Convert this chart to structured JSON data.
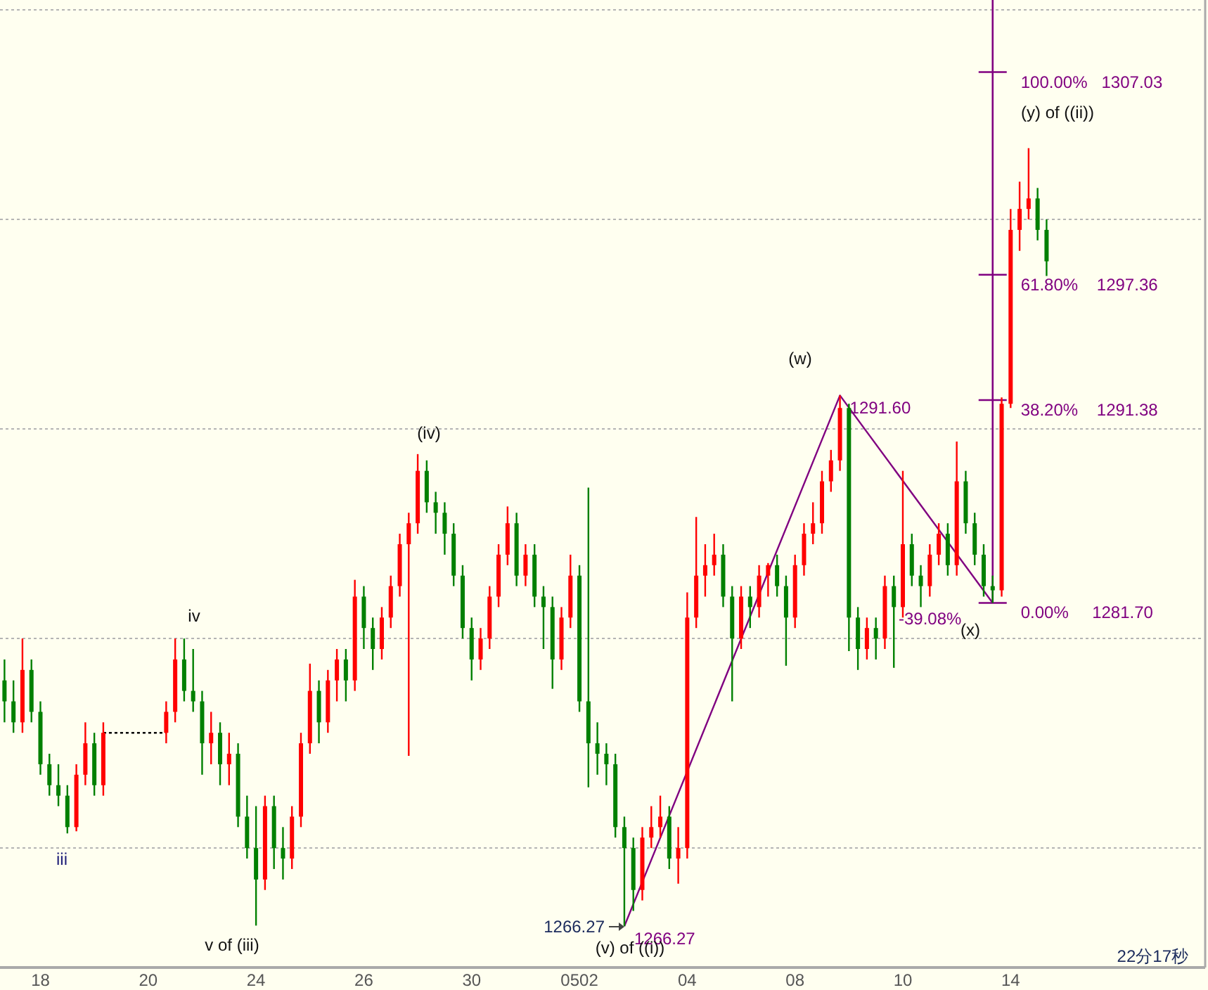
{
  "chart_data": {
    "type": "candlestick",
    "categories": [
      null,
      null,
      null,
      null,
      "18",
      null,
      null,
      null,
      null,
      null,
      null,
      null,
      null,
      null,
      null,
      null,
      "20",
      null,
      null,
      null,
      null,
      null,
      null,
      null,
      null,
      null,
      null,
      null,
      "24",
      null,
      null,
      null,
      null,
      null,
      null,
      null,
      null,
      null,
      null,
      null,
      "26",
      null,
      null,
      null,
      null,
      null,
      null,
      null,
      null,
      null,
      null,
      null,
      "30",
      null,
      null,
      null,
      null,
      null,
      null,
      null,
      null,
      null,
      null,
      null,
      "0502",
      null,
      null,
      null,
      null,
      null,
      null,
      null,
      null,
      null,
      null,
      null,
      "04",
      null,
      null,
      null,
      null,
      null,
      null,
      null,
      null,
      null,
      null,
      null,
      "08",
      null,
      null,
      null,
      null,
      null,
      null,
      null,
      null,
      null,
      null,
      null,
      "10",
      null,
      null,
      null,
      null,
      null,
      null,
      null,
      null,
      null,
      null,
      null,
      "14",
      null,
      null,
      null,
      null,
      null,
      null,
      null,
      null,
      null,
      null,
      null,
      null,
      null,
      null,
      null,
      null,
      null,
      null,
      null,
      null,
      null
    ],
    "ohlc": [
      [
        1278,
        1279,
        1276,
        1277
      ],
      [
        1277,
        1278,
        1275.5,
        1276
      ],
      [
        1276,
        1280,
        1275.5,
        1278.5
      ],
      [
        1278.5,
        1279,
        1276,
        1276.5
      ],
      [
        1276.5,
        1277,
        1273.5,
        1274
      ],
      [
        1274,
        1274.5,
        1272.5,
        1273
      ],
      [
        1273,
        1274,
        1272,
        1272.5
      ],
      [
        1272.5,
        1273,
        1270.7,
        1271
      ],
      [
        1271,
        1274,
        1270.8,
        1273.5
      ],
      [
        1273.5,
        1276,
        1273,
        1275
      ],
      [
        1275,
        1275.5,
        1272.5,
        1273
      ],
      [
        1273,
        1276,
        1272.5,
        1275.5
      ],
      null,
      null,
      null,
      null,
      null,
      null,
      [
        1275.5,
        1277,
        1275,
        1276.5
      ],
      [
        1276.5,
        1280,
        1276,
        1279
      ],
      [
        1279,
        1280,
        1277,
        1277.5
      ],
      [
        1277.5,
        1279.5,
        1276.5,
        1277
      ],
      [
        1277,
        1277.5,
        1273.5,
        1275
      ],
      [
        1275,
        1276.5,
        1274,
        1275.5
      ],
      [
        1275.5,
        1276,
        1273,
        1274
      ],
      [
        1274,
        1275.5,
        1273,
        1274.5
      ],
      [
        1274.5,
        1275,
        1271,
        1271.5
      ],
      [
        1271.5,
        1272.5,
        1269.5,
        1270
      ],
      [
        1270,
        1272,
        1266.3,
        1268.5
      ],
      [
        1268.5,
        1272.5,
        1268,
        1272
      ],
      [
        1272,
        1272.5,
        1269,
        1270
      ],
      [
        1270,
        1271,
        1268.5,
        1269.5
      ],
      [
        1269.5,
        1272,
        1269,
        1271.5
      ],
      [
        1271.5,
        1275.5,
        1271,
        1275
      ],
      [
        1275,
        1278.8,
        1274.5,
        1277.5
      ],
      [
        1277.5,
        1278,
        1275,
        1276
      ],
      [
        1276,
        1278.5,
        1275.5,
        1278
      ],
      [
        1278,
        1279.5,
        1277,
        1279
      ],
      [
        1279,
        1279.5,
        1277,
        1278
      ],
      [
        1278,
        1282.8,
        1277.5,
        1282
      ],
      [
        1282,
        1282.5,
        1279.5,
        1280.5
      ],
      [
        1280.5,
        1281,
        1278.5,
        1279.5
      ],
      [
        1279.5,
        1281.5,
        1279,
        1281
      ],
      [
        1281,
        1283,
        1280.5,
        1282.5
      ],
      [
        1282.5,
        1285,
        1282,
        1284.5
      ],
      [
        1284.5,
        1286,
        1274.4,
        1285.5
      ],
      [
        1285.5,
        1288.8,
        1285,
        1288
      ],
      [
        1288,
        1288.5,
        1286,
        1286.5
      ],
      [
        1286.5,
        1287,
        1285,
        1286
      ],
      [
        1286,
        1286.5,
        1284,
        1285
      ],
      [
        1285,
        1285.5,
        1282.5,
        1283
      ],
      [
        1283,
        1283.5,
        1280,
        1280.5
      ],
      [
        1280.5,
        1281,
        1278,
        1279
      ],
      [
        1279,
        1280.5,
        1278.5,
        1280
      ],
      [
        1280,
        1282.5,
        1279.5,
        1282
      ],
      [
        1282,
        1284.5,
        1281.5,
        1284
      ],
      [
        1284,
        1286.3,
        1283.5,
        1285.5
      ],
      [
        1285.5,
        1286,
        1282.5,
        1283
      ],
      [
        1283,
        1284.5,
        1282.5,
        1284
      ],
      [
        1284,
        1284.5,
        1281.5,
        1282
      ],
      [
        1282,
        1282.5,
        1279.5,
        1281.5
      ],
      [
        1281.5,
        1282,
        1277.6,
        1279
      ],
      [
        1279,
        1281.5,
        1278.5,
        1281
      ],
      [
        1281,
        1284,
        1280.5,
        1283
      ],
      [
        1283,
        1283.5,
        1276.5,
        1277
      ],
      [
        1277,
        1287.2,
        1272.9,
        1275
      ],
      [
        1275,
        1276,
        1273.5,
        1274.5
      ],
      [
        1274.5,
        1275,
        1273,
        1274
      ],
      [
        1274,
        1274.5,
        1270.5,
        1271
      ],
      [
        1271,
        1271.5,
        1266.27,
        1270
      ],
      [
        1270,
        1270.5,
        1267,
        1268
      ],
      [
        1268,
        1271,
        1267.5,
        1270.5
      ],
      [
        1270.5,
        1272,
        1270,
        1271
      ],
      [
        1271,
        1272.5,
        1270.5,
        1271.5
      ],
      [
        1271.5,
        1272,
        1269,
        1269.5
      ],
      [
        1269.5,
        1271,
        1268.3,
        1270
      ],
      [
        1270,
        1282.2,
        1269.5,
        1281
      ],
      [
        1281,
        1285.8,
        1280.5,
        1283
      ],
      [
        1283,
        1284.5,
        1282,
        1283.5
      ],
      [
        1283.5,
        1285,
        1283,
        1284
      ],
      [
        1284,
        1284.5,
        1281.5,
        1282
      ],
      [
        1282,
        1282.5,
        1277,
        1280
      ],
      [
        1280,
        1282.5,
        1279.5,
        1282
      ],
      [
        1282,
        1282.5,
        1280.5,
        1281.5
      ],
      [
        1281.5,
        1283.5,
        1281,
        1283
      ],
      [
        1283,
        1283.6,
        1282,
        1283.5
      ],
      [
        1283.5,
        1284,
        1282,
        1282.5
      ],
      [
        1282.5,
        1283,
        1278.7,
        1281
      ],
      [
        1281,
        1284,
        1280.5,
        1283.5
      ],
      [
        1283.5,
        1285.5,
        1283,
        1285
      ],
      [
        1285,
        1286.5,
        1284.5,
        1285.5
      ],
      [
        1285.5,
        1288,
        1285,
        1287.5
      ],
      [
        1287.5,
        1289,
        1287,
        1288.5
      ],
      [
        1288.5,
        1291.6,
        1288,
        1291
      ],
      [
        1291,
        1291.2,
        1279.4,
        1281
      ],
      [
        1281,
        1281.5,
        1278.5,
        1279.5
      ],
      [
        1279.5,
        1281,
        1279,
        1280.5
      ],
      [
        1280.5,
        1281,
        1279,
        1280
      ],
      [
        1280,
        1283,
        1279.5,
        1282.5
      ],
      [
        1282.5,
        1283,
        1278.6,
        1281.5
      ],
      [
        1281.5,
        1288,
        1281,
        1284.5
      ],
      [
        1284.5,
        1285,
        1282.5,
        1283
      ],
      [
        1283,
        1283.5,
        1281.5,
        1282.5
      ],
      [
        1282.5,
        1284.5,
        1282,
        1284
      ],
      [
        1284,
        1285.5,
        1283.5,
        1285
      ],
      [
        1285,
        1285.5,
        1283,
        1283.5
      ],
      [
        1283.5,
        1289.4,
        1283,
        1287.5
      ],
      [
        1287.5,
        1288,
        1285,
        1285.5
      ],
      [
        1285.5,
        1286,
        1283.5,
        1284
      ],
      [
        1284,
        1284.5,
        1282,
        1282.5
      ],
      [
        1282.5,
        1283,
        1281.7,
        1282.3
      ],
      [
        1282.3,
        1291.5,
        1282,
        1291.2
      ],
      [
        1291.2,
        1300.5,
        1291,
        1299.5
      ],
      [
        1299.5,
        1301.8,
        1298.5,
        1300.5
      ],
      [
        1300.5,
        1303.4,
        1300,
        1301
      ],
      [
        1301,
        1301.5,
        1299,
        1299.5
      ],
      [
        1299.5,
        1300,
        1297.3,
        1298
      ],
      null,
      null,
      null,
      null,
      null,
      null,
      null,
      null,
      null,
      null,
      null,
      null,
      null,
      null,
      null,
      null,
      null
    ],
    "colors": [
      "#008000",
      "#008000",
      "#ff0000",
      "#008000",
      "#008000",
      "#008000",
      "#008000",
      "#008000",
      "#ff0000",
      "#ff0000",
      "#008000",
      "#ff0000",
      null,
      null,
      null,
      null,
      null,
      null,
      "#ff0000",
      "#ff0000",
      "#008000",
      "#008000",
      "#008000",
      "#ff0000",
      "#008000",
      "#ff0000",
      "#008000",
      "#008000",
      "#008000",
      "#ff0000",
      "#008000",
      "#008000",
      "#ff0000",
      "#ff0000",
      "#ff0000",
      "#008000",
      "#ff0000",
      "#ff0000",
      "#008000",
      "#ff0000",
      "#008000",
      "#008000",
      "#ff0000",
      "#ff0000",
      "#ff0000",
      "#ff0000",
      "#ff0000",
      "#008000",
      "#008000",
      "#008000",
      "#008000",
      "#008000",
      "#008000",
      "#ff0000",
      "#ff0000",
      "#ff0000",
      "#ff0000",
      "#008000",
      "#ff0000",
      "#008000",
      "#008000",
      "#008000",
      "#ff0000",
      "#ff0000",
      "#008000",
      "#008000",
      "#008000",
      "#008000",
      "#008000",
      "#008000",
      "#008000",
      "#ff0000",
      "#ff0000",
      "#ff0000",
      "#008000",
      "#ff0000",
      "#ff0000",
      "#ff0000",
      "#ff0000",
      "#ff0000",
      "#008000",
      "#008000",
      "#ff0000",
      "#008000",
      "#ff0000",
      "#ff0000",
      "#008000",
      "#008000",
      "#ff0000",
      "#ff0000",
      "#ff0000",
      "#ff0000",
      "#ff0000",
      "#ff0000",
      "#008000",
      "#008000",
      "#ff0000",
      "#008000",
      "#ff0000",
      "#008000",
      "#ff0000",
      "#008000",
      "#008000",
      "#ff0000",
      "#ff0000",
      "#008000",
      "#ff0000",
      "#008000",
      "#008000",
      "#008000",
      "#008000",
      "#ff0000",
      "#ff0000",
      "#ff0000",
      "#ff0000",
      "#008000",
      "#008000",
      null,
      null,
      null,
      null,
      null,
      null,
      null,
      null,
      null,
      null,
      null,
      null,
      null,
      null,
      null,
      null,
      null
    ],
    "series": [
      {
        "type": "line",
        "color": "#800080",
        "values": [
          null,
          null,
          null,
          null,
          null,
          null,
          null,
          null,
          null,
          null,
          null,
          null,
          null,
          null,
          null,
          null,
          null,
          null,
          null,
          null,
          null,
          null,
          null,
          null,
          null,
          null,
          null,
          null,
          null,
          null,
          null,
          null,
          null,
          null,
          null,
          null,
          null,
          null,
          null,
          null,
          null,
          null,
          null,
          null,
          null,
          null,
          null,
          null,
          null,
          null,
          null,
          null,
          null,
          null,
          null,
          null,
          null,
          null,
          null,
          null,
          null,
          null,
          null,
          null,
          null,
          null,
          null,
          null,
          null,
          1266.27,
          null,
          null,
          null,
          null,
          null,
          null,
          null,
          null,
          null,
          null,
          null,
          null,
          null,
          null,
          null,
          null,
          null,
          null,
          null,
          null,
          null,
          null,
          null,
          1291.6,
          null,
          null,
          null,
          null,
          null,
          null,
          null,
          null,
          null,
          null,
          null,
          null,
          null,
          null,
          null,
          null,
          1281.7,
          null,
          null,
          null,
          null,
          null,
          null,
          null,
          null,
          null,
          null,
          null,
          null,
          null,
          null,
          null,
          null,
          null,
          null,
          null,
          null,
          null,
          null,
          null
        ],
        "value_labels": [
          null,
          null,
          null,
          null,
          null,
          null,
          null,
          null,
          null,
          null,
          null,
          null,
          null,
          null,
          null,
          null,
          null,
          null,
          null,
          null,
          null,
          null,
          null,
          null,
          null,
          null,
          null,
          null,
          null,
          null,
          null,
          null,
          null,
          null,
          null,
          null,
          null,
          null,
          null,
          null,
          null,
          null,
          null,
          null,
          null,
          null,
          null,
          null,
          null,
          null,
          null,
          null,
          null,
          null,
          null,
          null,
          null,
          null,
          null,
          null,
          null,
          null,
          null,
          null,
          null,
          null,
          null,
          null,
          null,
          "1266.27",
          null,
          null,
          null,
          null,
          null,
          null,
          null,
          null,
          null,
          null,
          null,
          null,
          null,
          null,
          null,
          null,
          null,
          null,
          null,
          null,
          null,
          null,
          null,
          "1291.60",
          null,
          null,
          null,
          null,
          null,
          null,
          null,
          null,
          null,
          null,
          null,
          null,
          null,
          null,
          null,
          null,
          null,
          null,
          null,
          null,
          null,
          null,
          null,
          null,
          null,
          null,
          null,
          null,
          null,
          null,
          null,
          null,
          null,
          null,
          null,
          null,
          null,
          null,
          null,
          null
        ]
      },
      {
        "type": "line",
        "color": "#000000",
        "line_style": "dotted",
        "values": [
          null,
          null,
          null,
          null,
          null,
          null,
          null,
          null,
          null,
          null,
          null,
          1275.5,
          null,
          null,
          null,
          null,
          null,
          null,
          1275.5,
          null,
          null,
          null,
          null,
          null,
          null,
          null,
          null,
          null,
          null,
          null,
          null,
          null,
          null,
          null,
          null,
          null,
          null,
          null,
          null,
          null,
          null,
          null,
          null,
          null,
          null,
          null,
          null,
          null,
          null,
          null,
          null,
          null,
          null,
          null,
          null,
          null,
          null,
          null,
          null,
          null,
          null,
          null,
          null,
          null,
          null,
          null,
          null,
          null,
          null,
          null,
          null,
          null,
          null,
          null,
          null,
          null,
          null,
          null,
          null,
          null,
          null,
          null,
          null,
          null,
          null,
          null,
          null,
          null,
          null,
          null,
          null,
          null,
          null,
          null,
          null,
          null,
          null,
          null,
          null,
          null,
          null,
          null,
          null,
          null,
          null,
          null,
          null,
          null,
          null,
          null,
          null,
          null,
          null,
          null,
          null,
          null,
          null,
          null,
          null,
          null,
          null,
          null,
          null,
          null,
          null,
          null,
          null,
          null,
          null,
          null,
          null,
          null,
          null,
          null
        ]
      }
    ],
    "ref_lines": [
      {
        "axis": "y",
        "value": 1307.03,
        "label": "100.00%   1307.03",
        "color": "#800080"
      },
      {
        "axis": "y",
        "value": 1297.36,
        "label": "61.80%    1297.36",
        "color": "#800080"
      },
      {
        "axis": "y",
        "value": 1291.38,
        "label": "38.20%    1291.38",
        "color": "#800080"
      },
      {
        "axis": "y",
        "value": 1281.7,
        "label": "0.00%     1281.70",
        "color": "#800080"
      }
    ],
    "annotations": [
      "iv",
      "iii",
      "v of (iii)",
      "(iv)",
      "(v) of ((i))",
      "1266.27",
      "(w)",
      "-39.08%",
      "(x)",
      "(y) of ((ii))",
      "22分17秒"
    ],
    "ylim": [
      1264.3,
      1310.47
    ],
    "yticks": [
      {
        "value": 1270,
        "label": null
      },
      {
        "value": 1280,
        "label": null
      },
      {
        "value": 1290,
        "label": null
      },
      {
        "value": 1300,
        "label": null
      },
      {
        "value": 1310,
        "label": null
      }
    ],
    "grid": "y",
    "tick_labels": "x"
  }
}
